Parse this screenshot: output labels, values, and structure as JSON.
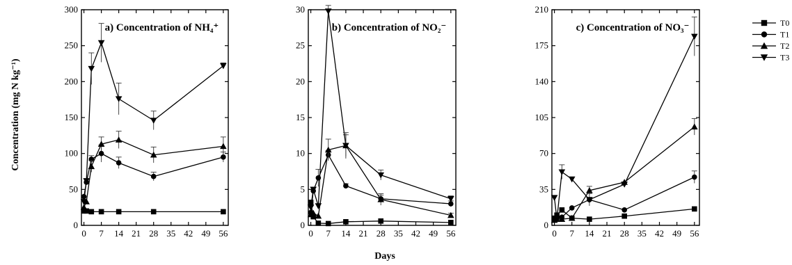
{
  "figure": {
    "ylabel": "Concentration (mg N kg⁻¹)",
    "xlabel": "Days"
  },
  "legend": [
    "T0",
    "T1",
    "T2",
    "T3"
  ],
  "chart_data": [
    {
      "type": "line",
      "title": "a) Concentration of NH₄⁺",
      "x": [
        0,
        1,
        3,
        7,
        14,
        28,
        56
      ],
      "xticks": [
        0,
        7,
        14,
        21,
        28,
        35,
        42,
        49,
        56
      ],
      "ylim": [
        0,
        300
      ],
      "yticks": [
        0,
        50,
        100,
        150,
        200,
        250,
        300
      ],
      "series": [
        {
          "name": "T0",
          "marker": "square",
          "values": [
            20,
            20,
            19,
            19,
            19,
            19,
            19
          ],
          "err": [
            0,
            0,
            0,
            0,
            0,
            0,
            0
          ]
        },
        {
          "name": "T1",
          "marker": "circle",
          "values": [
            40,
            60,
            92,
            100,
            87,
            68,
            95
          ],
          "err": [
            0,
            0,
            5,
            12,
            8,
            6,
            7
          ]
        },
        {
          "name": "T2",
          "marker": "triangle-up",
          "values": [
            25,
            33,
            82,
            113,
            119,
            98,
            110
          ],
          "err": [
            0,
            0,
            8,
            10,
            12,
            11,
            13
          ]
        },
        {
          "name": "T3",
          "marker": "triangle-down",
          "values": [
            33,
            62,
            218,
            254,
            176,
            146,
            222
          ],
          "err": [
            0,
            0,
            22,
            27,
            22,
            13,
            4
          ]
        }
      ]
    },
    {
      "type": "line",
      "title": "b) Concentration of NO₂⁻",
      "x": [
        0,
        1,
        3,
        7,
        14,
        28,
        56
      ],
      "xticks": [
        0,
        7,
        14,
        21,
        28,
        35,
        42,
        49,
        56
      ],
      "ylim": [
        0,
        30
      ],
      "yticks": [
        0,
        5,
        10,
        15,
        20,
        25,
        30
      ],
      "series": [
        {
          "name": "T0",
          "marker": "square",
          "values": [
            3.2,
            1.2,
            0.3,
            0.25,
            0.5,
            0.6,
            0.4
          ],
          "err": [
            0,
            0,
            0,
            0,
            0,
            0,
            0
          ]
        },
        {
          "name": "T1",
          "marker": "circle",
          "values": [
            1.8,
            4.8,
            6.6,
            9.8,
            5.5,
            3.7,
            3.0
          ],
          "err": [
            0,
            0,
            1.2,
            0.6,
            0.3,
            0.5,
            0.4
          ]
        },
        {
          "name": "T2",
          "marker": "triangle-up",
          "values": [
            1.5,
            1.7,
            1.3,
            10.5,
            11.1,
            3.6,
            1.4
          ],
          "err": [
            0,
            0,
            0,
            1.5,
            1.5,
            0.8,
            0.3
          ]
        },
        {
          "name": "T3",
          "marker": "triangle-down",
          "values": [
            2.5,
            5.0,
            2.7,
            29.8,
            11.1,
            7.0,
            3.7
          ],
          "err": [
            0,
            0,
            0,
            0.8,
            1.8,
            0.7,
            0.4
          ]
        }
      ]
    },
    {
      "type": "line",
      "title": "c) Concentration of NO₃⁻",
      "x": [
        0,
        1,
        3,
        7,
        14,
        28,
        56
      ],
      "xticks": [
        0,
        7,
        14,
        21,
        28,
        35,
        42,
        49,
        56
      ],
      "ylim": [
        0,
        210
      ],
      "yticks": [
        0,
        35,
        70,
        105,
        140,
        175,
        210
      ],
      "series": [
        {
          "name": "T0",
          "marker": "square",
          "values": [
            7,
            10,
            15,
            7,
            6,
            9,
            16
          ],
          "err": [
            0,
            0,
            0,
            0,
            0,
            0,
            0
          ]
        },
        {
          "name": "T1",
          "marker": "circle",
          "values": [
            5,
            7,
            8,
            17,
            25,
            15,
            47
          ],
          "err": [
            0,
            0,
            0,
            0,
            0,
            0,
            6
          ]
        },
        {
          "name": "T2",
          "marker": "triangle-up",
          "values": [
            5,
            6,
            6,
            7,
            34,
            42,
            96
          ],
          "err": [
            0,
            0,
            0,
            0,
            4,
            0,
            8
          ]
        },
        {
          "name": "T3",
          "marker": "triangle-down",
          "values": [
            27,
            6,
            52,
            45,
            25,
            40,
            184
          ],
          "err": [
            0,
            0,
            7,
            0,
            6,
            0,
            19
          ]
        }
      ]
    }
  ]
}
